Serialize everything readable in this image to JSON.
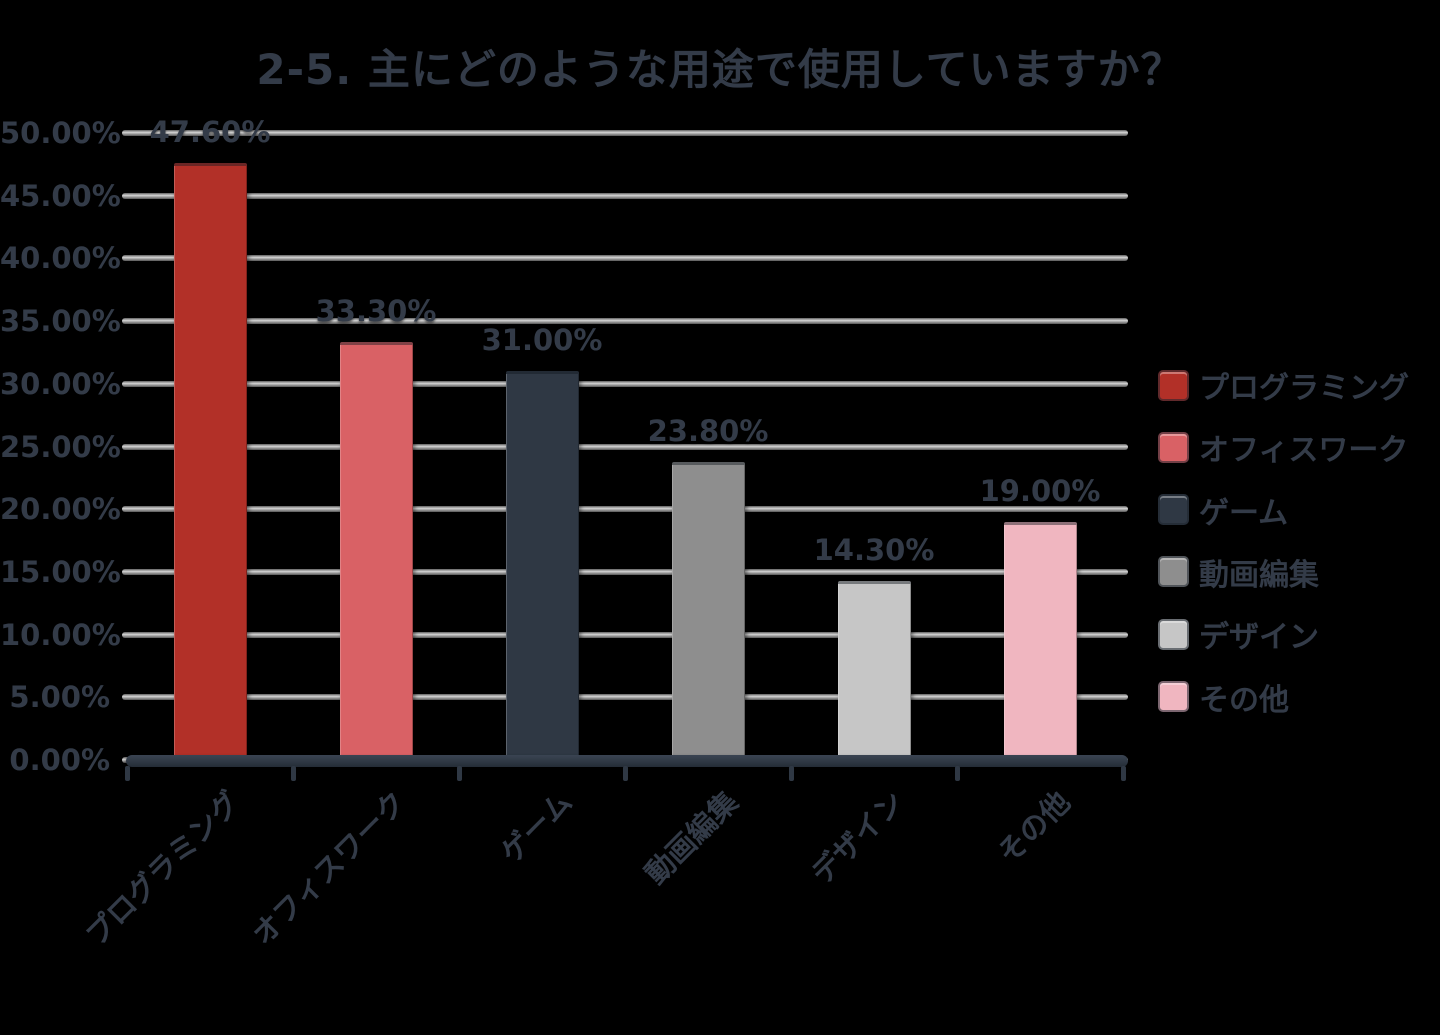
{
  "title": "2-5. 主にどのような用途で使用していますか？",
  "colors": {
    "background": "#000000",
    "text": "#333b48",
    "axis": "#2f3844",
    "gridline": "#a8a8a8"
  },
  "chart_data": {
    "type": "bar",
    "title": "2-5. 主にどのような用途で使用していますか？",
    "categories": [
      "プログラミング",
      "オフィスワーク",
      "ゲーム",
      "動画編集",
      "デザイン",
      "その他"
    ],
    "values": [
      47.6,
      33.3,
      31.0,
      23.8,
      14.3,
      19.0
    ],
    "value_labels": [
      "47.60%",
      "33.30%",
      "31.00%",
      "23.80%",
      "14.30%",
      "19.00%"
    ],
    "bar_colors": [
      "#b23028",
      "#d96165",
      "#2f3844",
      "#8e8e8e",
      "#c6c6c6",
      "#f0b6c0"
    ],
    "y_tick_labels": [
      "0.00%",
      "5.00%",
      "10.00%",
      "15.00%",
      "20.00%",
      "25.00%",
      "30.00%",
      "35.00%",
      "40.00%",
      "45.00%",
      "50.00%"
    ],
    "y_tick_values": [
      0,
      5,
      10,
      15,
      20,
      25,
      30,
      35,
      40,
      45,
      50
    ],
    "ylim": [
      0,
      50
    ],
    "y_step": 5,
    "grid": true,
    "xlabel": "",
    "ylabel": "",
    "legend_position": "right",
    "legend": [
      {
        "label": "プログラミング",
        "color": "#b23028"
      },
      {
        "label": "オフィスワーク",
        "color": "#d96165"
      },
      {
        "label": "ゲーム",
        "color": "#2f3844"
      },
      {
        "label": "動画編集",
        "color": "#8e8e8e"
      },
      {
        "label": "デザイン",
        "color": "#c6c6c6"
      },
      {
        "label": "その他",
        "color": "#f0b6c0"
      }
    ]
  }
}
